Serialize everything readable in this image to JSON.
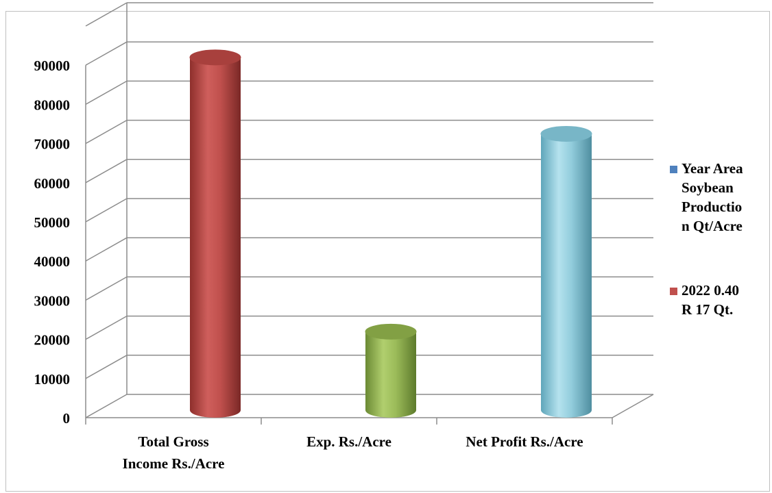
{
  "chart_data": {
    "type": "bar",
    "style": "3d-cylinder",
    "categories": [
      "Total Gross Income Rs./Acre",
      "Exp. Rs./Acre",
      "Net Profit Rs./Acre"
    ],
    "category_label_lines": [
      [
        "Total Gross",
        "Income Rs./Acre"
      ],
      [
        "Exp. Rs./Acre"
      ],
      [
        "Net Profit Rs./Acre"
      ]
    ],
    "values": [
      89000,
      19000,
      69500
    ],
    "bar_colors": [
      "#c0504d",
      "#9bbb59",
      "#92cddc"
    ],
    "ylim": [
      0,
      90000
    ],
    "yticks": [
      "0",
      "10000",
      "20000",
      "30000",
      "40000",
      "50000",
      "60000",
      "70000",
      "80000",
      "90000"
    ],
    "grid": true,
    "legend_position": "right",
    "legend": [
      {
        "text": "Year Area Soybean Production Qt/Acre",
        "lines": [
          "Year Area",
          "Soybean",
          "Productio",
          "n Qt/Acre"
        ],
        "color": "#4f81bd"
      },
      {
        "text": "2022 0.40 R 17 Qt.",
        "lines": [
          "2022 0.40",
          "R 17 Qt."
        ],
        "color": "#c0504d"
      }
    ]
  }
}
